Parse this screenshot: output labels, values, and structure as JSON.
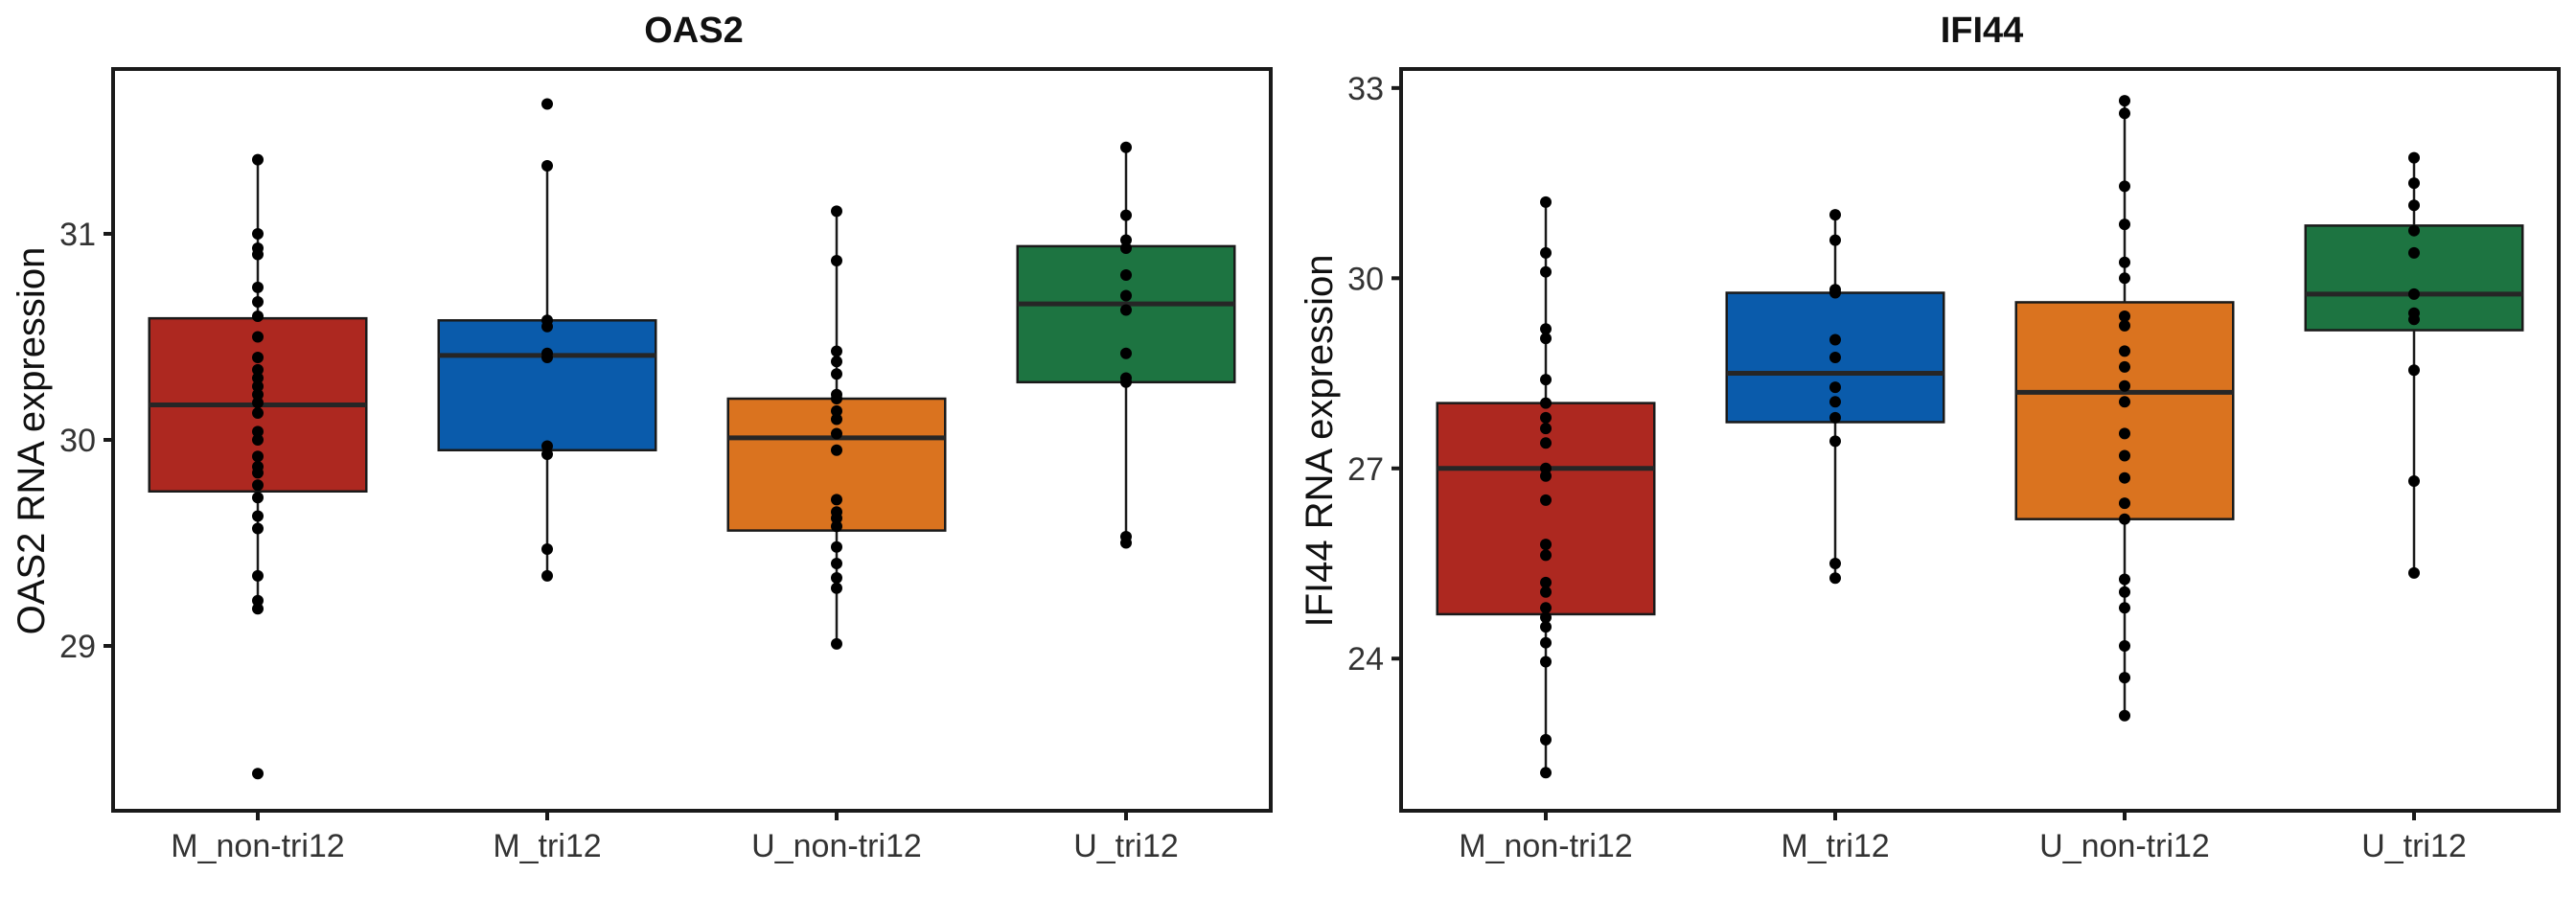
{
  "chart_data": [
    {
      "type": "boxplot",
      "title": "OAS2",
      "xlabel": "",
      "ylabel": "OAS2 RNA expression",
      "ylim": [
        28.2,
        31.8
      ],
      "yticks": [
        29,
        30,
        31
      ],
      "ytick_labels": [
        "29",
        "30",
        "31"
      ],
      "grid": false,
      "categories": [
        "M_non-tri12",
        "M_tri12",
        "U_non-tri12",
        "U_tri12"
      ],
      "groups": [
        {
          "name": "M_non-tri12",
          "color": "#AD2820",
          "stats": {
            "whisker_low": 29.18,
            "q1": 29.75,
            "median": 30.17,
            "q3": 30.59,
            "whisker_high": 31.36
          },
          "points": [
            28.38,
            29.18,
            29.22,
            29.34,
            29.57,
            29.63,
            29.72,
            29.78,
            29.84,
            29.87,
            29.92,
            30.0,
            30.04,
            30.13,
            30.18,
            30.22,
            30.26,
            30.3,
            30.34,
            30.4,
            30.5,
            30.6,
            30.67,
            30.74,
            30.9,
            30.93,
            31.0,
            31.36
          ]
        },
        {
          "name": "M_tri12",
          "color": "#0A5BAB",
          "stats": {
            "whisker_low": 29.34,
            "q1": 29.95,
            "median": 30.41,
            "q3": 30.58,
            "whisker_high": 31.33
          },
          "points": [
            29.34,
            29.47,
            29.93,
            29.97,
            30.4,
            30.42,
            30.55,
            30.58,
            31.33,
            31.63
          ]
        },
        {
          "name": "U_non-tri12",
          "color": "#DA731F",
          "stats": {
            "whisker_low": 29.01,
            "q1": 29.56,
            "median": 30.01,
            "q3": 30.2,
            "whisker_high": 31.11
          },
          "points": [
            29.01,
            29.28,
            29.33,
            29.4,
            29.48,
            29.58,
            29.62,
            29.65,
            29.71,
            29.95,
            30.03,
            30.1,
            30.14,
            30.2,
            30.22,
            30.32,
            30.38,
            30.43,
            30.87,
            31.11
          ]
        },
        {
          "name": "U_tri12",
          "color": "#1D7441",
          "stats": {
            "whisker_low": 29.5,
            "q1": 30.28,
            "median": 30.66,
            "q3": 30.94,
            "whisker_high": 31.42
          },
          "points": [
            29.5,
            29.53,
            30.28,
            30.3,
            30.42,
            30.63,
            30.7,
            30.8,
            30.93,
            30.97,
            31.09,
            31.42
          ]
        }
      ]
    },
    {
      "type": "boxplot",
      "title": "IFI44",
      "xlabel": "",
      "ylabel": "IFI44 RNA expression",
      "ylim": [
        21.6,
        33.3
      ],
      "yticks": [
        24,
        27,
        30,
        33
      ],
      "ytick_labels": [
        "24",
        "27",
        "30",
        "33"
      ],
      "grid": false,
      "categories": [
        "M_non-tri12",
        "M_tri12",
        "U_non-tri12",
        "U_tri12"
      ],
      "groups": [
        {
          "name": "M_non-tri12",
          "color": "#AD2820",
          "stats": {
            "whisker_low": 22.2,
            "q1": 24.7,
            "median": 27.0,
            "q3": 28.03,
            "whisker_high": 31.2
          },
          "points": [
            22.2,
            22.72,
            23.95,
            24.25,
            24.5,
            24.65,
            24.8,
            25.05,
            25.2,
            25.63,
            25.8,
            26.5,
            26.88,
            27.0,
            27.4,
            27.63,
            27.8,
            28.03,
            28.4,
            29.05,
            29.2,
            30.1,
            30.4,
            31.2
          ]
        },
        {
          "name": "M_tri12",
          "color": "#0A5BAB",
          "stats": {
            "whisker_low": 25.27,
            "q1": 27.73,
            "median": 28.5,
            "q3": 29.77,
            "whisker_high": 31.0
          },
          "points": [
            25.27,
            25.5,
            27.43,
            27.8,
            28.05,
            28.28,
            28.75,
            29.03,
            29.77,
            29.82,
            30.6,
            31.0
          ]
        },
        {
          "name": "U_non-tri12",
          "color": "#DA731F",
          "stats": {
            "whisker_low": 23.1,
            "q1": 26.2,
            "median": 28.2,
            "q3": 29.62,
            "whisker_high": 32.8
          },
          "points": [
            23.1,
            23.7,
            24.2,
            24.8,
            25.05,
            25.25,
            26.2,
            26.45,
            26.85,
            27.2,
            27.55,
            28.05,
            28.3,
            28.6,
            28.85,
            29.25,
            29.4,
            30.0,
            30.25,
            30.85,
            31.45,
            32.6,
            32.8
          ]
        },
        {
          "name": "U_tri12",
          "color": "#1D7441",
          "stats": {
            "whisker_low": 25.35,
            "q1": 29.18,
            "median": 29.75,
            "q3": 30.83,
            "whisker_high": 31.9
          },
          "points": [
            25.35,
            26.8,
            28.55,
            29.35,
            29.45,
            29.75,
            30.4,
            30.75,
            31.15,
            31.5,
            31.9
          ]
        }
      ]
    }
  ]
}
